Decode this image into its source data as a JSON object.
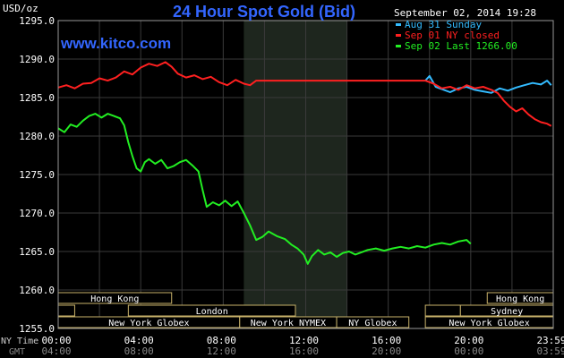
{
  "chart_data": {
    "type": "line",
    "title": "24 Hour Spot Gold (Bid)",
    "watermark": "www.kitco.com",
    "timestamp": "September 02, 2014 19:28",
    "ylabel": "USD/oz",
    "ylim": [
      1255,
      1295
    ],
    "yticks": [
      "1295.0",
      "1290.0",
      "1285.0",
      "1280.0",
      "1275.0",
      "1270.0",
      "1265.0",
      "1260.0",
      "1255.0"
    ],
    "ny_time_label": "NY Time",
    "gmt_label": "GMT",
    "xticks_ny": [
      "00:00",
      "04:00",
      "08:00",
      "12:00",
      "16:00",
      "20:00",
      "23:59"
    ],
    "xticks_gmt": [
      "04:00",
      "08:00",
      "12:00",
      "16:00",
      "20:00",
      "00:00",
      "03:59"
    ],
    "grid": true,
    "shaded_period": [
      9,
      14
    ],
    "legend": [
      {
        "label": "Aug 31 Sunday",
        "color": "#33bbff"
      },
      {
        "label": "Sep 01 NY closed",
        "color": "#ff2020"
      },
      {
        "label": "Sep 02 Last 1266.00",
        "color": "#22ee22"
      }
    ],
    "series": [
      {
        "name": "Aug 31 Sunday",
        "color": "#33bbff",
        "points": [
          [
            17.8,
            1287.2
          ],
          [
            18.0,
            1287.8
          ],
          [
            18.3,
            1286.4
          ],
          [
            18.7,
            1286.0
          ],
          [
            19.0,
            1285.7
          ],
          [
            19.4,
            1286.2
          ],
          [
            19.8,
            1286.4
          ],
          [
            20.2,
            1286.0
          ],
          [
            20.6,
            1285.8
          ],
          [
            21.0,
            1285.6
          ],
          [
            21.4,
            1286.2
          ],
          [
            21.8,
            1285.9
          ],
          [
            22.2,
            1286.3
          ],
          [
            22.6,
            1286.6
          ],
          [
            23.0,
            1286.9
          ],
          [
            23.4,
            1286.7
          ],
          [
            23.7,
            1287.2
          ],
          [
            23.9,
            1286.6
          ]
        ]
      },
      {
        "name": "Sep 01 NY closed",
        "color": "#ff2020",
        "points": [
          [
            0.0,
            1286.3
          ],
          [
            0.4,
            1286.6
          ],
          [
            0.8,
            1286.2
          ],
          [
            1.2,
            1286.8
          ],
          [
            1.6,
            1286.9
          ],
          [
            2.0,
            1287.5
          ],
          [
            2.4,
            1287.2
          ],
          [
            2.8,
            1287.6
          ],
          [
            3.2,
            1288.4
          ],
          [
            3.6,
            1288.0
          ],
          [
            4.0,
            1288.9
          ],
          [
            4.4,
            1289.4
          ],
          [
            4.8,
            1289.1
          ],
          [
            5.2,
            1289.6
          ],
          [
            5.5,
            1289.0
          ],
          [
            5.8,
            1288.1
          ],
          [
            6.2,
            1287.6
          ],
          [
            6.6,
            1287.9
          ],
          [
            7.0,
            1287.4
          ],
          [
            7.4,
            1287.7
          ],
          [
            7.8,
            1287.0
          ],
          [
            8.2,
            1286.6
          ],
          [
            8.6,
            1287.3
          ],
          [
            9.0,
            1286.8
          ],
          [
            9.3,
            1286.6
          ],
          [
            9.6,
            1287.2
          ],
          [
            17.8,
            1287.2
          ],
          [
            18.2,
            1286.8
          ],
          [
            18.6,
            1286.2
          ],
          [
            19.0,
            1286.4
          ],
          [
            19.4,
            1286.0
          ],
          [
            19.8,
            1286.6
          ],
          [
            20.2,
            1286.2
          ],
          [
            20.6,
            1286.4
          ],
          [
            21.0,
            1286.0
          ],
          [
            21.3,
            1285.6
          ],
          [
            21.6,
            1284.6
          ],
          [
            21.9,
            1283.8
          ],
          [
            22.2,
            1283.2
          ],
          [
            22.5,
            1283.6
          ],
          [
            22.8,
            1282.8
          ],
          [
            23.1,
            1282.2
          ],
          [
            23.4,
            1281.8
          ],
          [
            23.7,
            1281.6
          ],
          [
            23.9,
            1281.3
          ]
        ]
      },
      {
        "name": "Sep 02 Last 1266.00",
        "color": "#22ee22",
        "points": [
          [
            0.0,
            1281.0
          ],
          [
            0.3,
            1280.5
          ],
          [
            0.6,
            1281.5
          ],
          [
            0.9,
            1281.2
          ],
          [
            1.2,
            1282.0
          ],
          [
            1.5,
            1282.6
          ],
          [
            1.8,
            1282.9
          ],
          [
            2.1,
            1282.4
          ],
          [
            2.4,
            1282.9
          ],
          [
            2.7,
            1282.6
          ],
          [
            3.0,
            1282.3
          ],
          [
            3.2,
            1281.4
          ],
          [
            3.4,
            1279.2
          ],
          [
            3.6,
            1277.4
          ],
          [
            3.8,
            1275.8
          ],
          [
            4.0,
            1275.4
          ],
          [
            4.2,
            1276.6
          ],
          [
            4.4,
            1277.0
          ],
          [
            4.7,
            1276.4
          ],
          [
            5.0,
            1276.9
          ],
          [
            5.3,
            1275.8
          ],
          [
            5.6,
            1276.1
          ],
          [
            5.9,
            1276.6
          ],
          [
            6.2,
            1276.9
          ],
          [
            6.5,
            1276.2
          ],
          [
            6.8,
            1275.4
          ],
          [
            7.0,
            1273.0
          ],
          [
            7.2,
            1270.8
          ],
          [
            7.5,
            1271.4
          ],
          [
            7.8,
            1271.0
          ],
          [
            8.1,
            1271.6
          ],
          [
            8.4,
            1270.9
          ],
          [
            8.7,
            1271.5
          ],
          [
            9.0,
            1270.0
          ],
          [
            9.3,
            1268.4
          ],
          [
            9.6,
            1266.5
          ],
          [
            9.9,
            1266.9
          ],
          [
            10.2,
            1267.6
          ],
          [
            10.6,
            1267.0
          ],
          [
            11.0,
            1266.6
          ],
          [
            11.3,
            1265.9
          ],
          [
            11.6,
            1265.4
          ],
          [
            11.9,
            1264.6
          ],
          [
            12.1,
            1263.4
          ],
          [
            12.3,
            1264.4
          ],
          [
            12.6,
            1265.2
          ],
          [
            12.9,
            1264.6
          ],
          [
            13.2,
            1264.9
          ],
          [
            13.5,
            1264.3
          ],
          [
            13.8,
            1264.8
          ],
          [
            14.1,
            1265.0
          ],
          [
            14.4,
            1264.6
          ],
          [
            14.7,
            1264.9
          ],
          [
            15.0,
            1265.2
          ],
          [
            15.4,
            1265.4
          ],
          [
            15.8,
            1265.1
          ],
          [
            16.2,
            1265.4
          ],
          [
            16.6,
            1265.6
          ],
          [
            17.0,
            1265.4
          ],
          [
            17.4,
            1265.7
          ],
          [
            17.8,
            1265.5
          ],
          [
            18.2,
            1265.9
          ],
          [
            18.6,
            1266.1
          ],
          [
            19.0,
            1265.9
          ],
          [
            19.4,
            1266.3
          ],
          [
            19.8,
            1266.5
          ],
          [
            20.0,
            1266.0
          ]
        ]
      }
    ],
    "sessions": [
      {
        "label": "Hong Kong",
        "start": 0.0,
        "end": 5.5,
        "row": 0
      },
      {
        "label": "Hong Kong",
        "start": 20.8,
        "end": 24.0,
        "row": 0
      },
      {
        "label": "",
        "start": 0.0,
        "end": 0.8,
        "row": 1
      },
      {
        "label": "London",
        "start": 3.4,
        "end": 11.5,
        "row": 1
      },
      {
        "label": "",
        "start": 17.8,
        "end": 19.5,
        "row": 1
      },
      {
        "label": "Sydney",
        "start": 19.5,
        "end": 24.0,
        "row": 1
      },
      {
        "label": "New York Globex",
        "start": 0.0,
        "end": 8.8,
        "row": 2
      },
      {
        "label": "New York NYMEX",
        "start": 8.8,
        "end": 13.5,
        "row": 2
      },
      {
        "label": "NY Globex",
        "start": 13.5,
        "end": 17.0,
        "row": 2
      },
      {
        "label": "New York Globex",
        "start": 17.8,
        "end": 24.0,
        "row": 2
      }
    ]
  }
}
